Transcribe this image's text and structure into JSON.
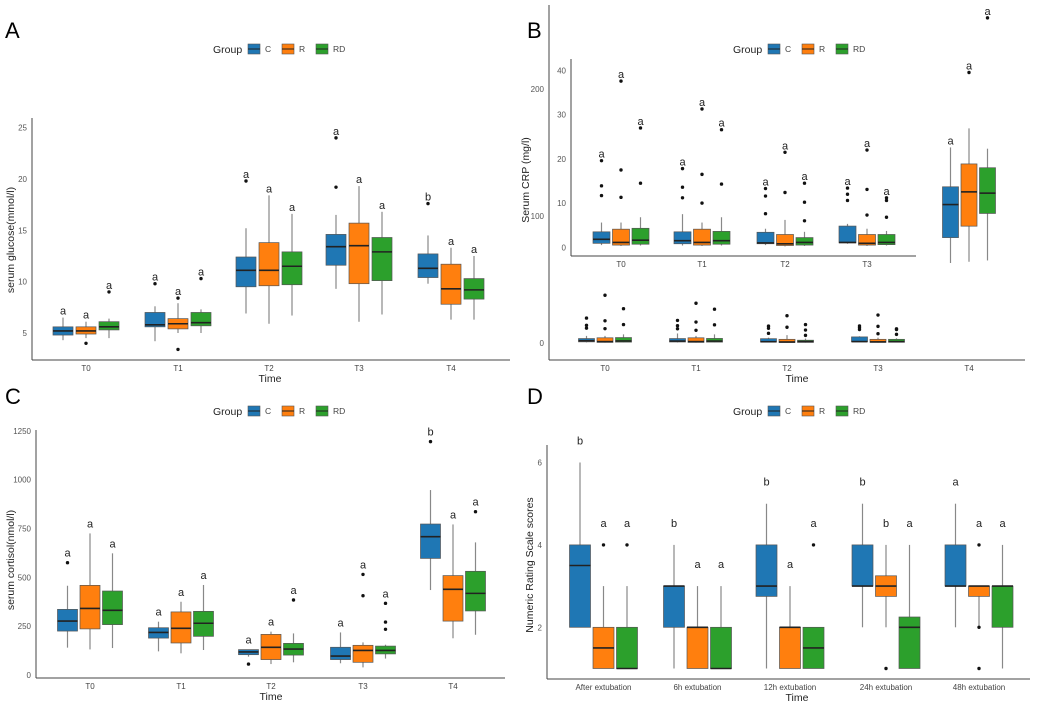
{
  "legend": {
    "title": "Group",
    "items": [
      {
        "label": "C",
        "color": "#1f77b4"
      },
      {
        "label": "R",
        "color": "#ff7f0e"
      },
      {
        "label": "RD",
        "color": "#2ca02c"
      }
    ]
  },
  "chart_data": [
    {
      "panel": "A",
      "type": "boxplot",
      "xlabel": "Time",
      "ylabel": "serum glucose(mmol/l)",
      "yticks": [
        5,
        10,
        15,
        20,
        25
      ],
      "categories": [
        "T0",
        "T1",
        "T2",
        "T3",
        "T4"
      ],
      "groups": [
        "C",
        "R",
        "RD"
      ],
      "boxes": [
        [
          {
            "s": [
              4.3,
              4.8,
              5.2,
              5.6,
              6.5
            ],
            "o": [],
            "l": "a"
          },
          {
            "s": [
              4.5,
              4.9,
              5.2,
              5.6,
              6.1
            ],
            "o": [
              4.0
            ],
            "l": "a"
          },
          {
            "s": [
              4.5,
              5.3,
              5.6,
              6.1,
              6.4
            ],
            "o": [
              9.0
            ],
            "l": "a"
          }
        ],
        [
          {
            "s": [
              4.2,
              5.6,
              5.8,
              7.0,
              7.6
            ],
            "o": [
              9.8
            ],
            "l": "a"
          },
          {
            "s": [
              5.0,
              5.4,
              5.9,
              6.4,
              7.9
            ],
            "o": [
              8.4,
              3.4
            ],
            "l": "a"
          },
          {
            "s": [
              5.0,
              5.7,
              6.0,
              7.0,
              7.3
            ],
            "o": [
              10.3
            ],
            "l": "a"
          }
        ],
        [
          {
            "s": [
              6.9,
              9.5,
              11.1,
              12.4,
              15.2
            ],
            "o": [
              19.8
            ],
            "l": "a"
          },
          {
            "s": [
              5.9,
              9.6,
              11.1,
              13.8,
              18.4
            ],
            "o": [],
            "l": "a"
          },
          {
            "s": [
              6.7,
              9.7,
              11.5,
              12.9,
              16.6
            ],
            "o": [],
            "l": "a"
          }
        ],
        [
          {
            "s": [
              9.3,
              11.6,
              13.4,
              14.6,
              16.5
            ],
            "o": [
              19.2,
              24.0
            ],
            "l": "a"
          },
          {
            "s": [
              6.1,
              9.8,
              13.5,
              15.7,
              19.3
            ],
            "o": [],
            "l": "a"
          },
          {
            "s": [
              6.8,
              10.1,
              12.9,
              14.3,
              16.8
            ],
            "o": [],
            "l": "a"
          }
        ],
        [
          {
            "s": [
              9.8,
              10.4,
              11.3,
              12.7,
              14.5
            ],
            "o": [
              17.6
            ],
            "l": "b"
          },
          {
            "s": [
              6.3,
              7.8,
              9.3,
              11.7,
              13.3
            ],
            "o": [],
            "l": "a"
          },
          {
            "s": [
              6.3,
              8.3,
              9.2,
              10.3,
              12.5
            ],
            "o": [],
            "l": "a"
          }
        ]
      ]
    },
    {
      "panel": "B",
      "type": "boxplot",
      "xlabel": "Time",
      "ylabel": "Serum CRP (mg/l)",
      "yticks": [
        0,
        100,
        200
      ],
      "categories": [
        "T0",
        "T1",
        "T2",
        "T3",
        "T4"
      ],
      "groups": [
        "C",
        "R",
        "RD"
      ],
      "inset": {
        "yticks": [
          0,
          10,
          20,
          30,
          40
        ],
        "categories": [
          "T0",
          "T1",
          "T2",
          "T3"
        ]
      },
      "boxes": [
        [
          {
            "s": [
              0.5,
              0.9,
              1.8,
              3.5,
              5.6
            ],
            "o": [
              11.7,
              13.9,
              19.6
            ],
            "l": "a"
          },
          {
            "s": [
              0.3,
              0.5,
              1.1,
              4.1,
              5.6
            ],
            "o": [
              11.3,
              17.5,
              37.6
            ],
            "l": "a"
          },
          {
            "s": [
              0.4,
              0.7,
              1.6,
              4.3,
              6.8
            ],
            "o": [
              14.5,
              27.0
            ],
            "l": "a"
          }
        ],
        [
          {
            "s": [
              0.4,
              0.8,
              1.5,
              3.5,
              7.5
            ],
            "o": [
              11.2,
              13.6,
              17.8
            ],
            "l": "a"
          },
          {
            "s": [
              0.3,
              0.5,
              1.1,
              4.1,
              5.6
            ],
            "o": [
              10.0,
              16.5,
              31.3
            ],
            "l": "a"
          },
          {
            "s": [
              0.4,
              0.7,
              1.5,
              3.6,
              6.8
            ],
            "o": [
              14.3,
              26.6
            ],
            "l": "a"
          }
        ],
        [
          {
            "s": [
              0.5,
              0.8,
              1.0,
              3.4,
              4.2
            ],
            "o": [
              7.6,
              11.6,
              13.3
            ],
            "l": "a"
          },
          {
            "s": [
              0.2,
              0.4,
              0.8,
              2.9,
              6.2
            ],
            "o": [
              12.4,
              21.5
            ],
            "l": "a"
          },
          {
            "s": [
              0.3,
              0.5,
              1.1,
              2.2,
              3.5
            ],
            "o": [
              6.0,
              10.2,
              14.5
            ],
            "l": "a"
          }
        ],
        [
          {
            "s": [
              0.8,
              1.0,
              1.1,
              4.8,
              5.3
            ],
            "o": [
              10.6,
              12.0,
              13.4
            ],
            "l": "a"
          },
          {
            "s": [
              0.3,
              0.5,
              0.9,
              2.9,
              4.2
            ],
            "o": [
              7.3,
              13.1,
              22.0
            ],
            "l": "a"
          },
          {
            "s": [
              0.4,
              0.6,
              1.1,
              2.9,
              3.7
            ],
            "o": [
              6.8,
              10.6,
              11.2
            ],
            "l": "a"
          }
        ],
        [
          {
            "s": [
              63,
              83,
              109,
              123,
              154
            ],
            "o": [],
            "l": "a"
          },
          {
            "s": [
              64,
              92,
              119,
              141,
              169
            ],
            "o": [
              213
            ],
            "l": "a"
          },
          {
            "s": [
              65,
              102,
              118,
              138,
              153
            ],
            "o": [
              256
            ],
            "l": "a"
          }
        ]
      ]
    },
    {
      "panel": "C",
      "type": "boxplot",
      "xlabel": "Time",
      "ylabel": "serum cortisol(nmol/l)",
      "yticks": [
        0,
        250,
        500,
        750,
        1000,
        1250
      ],
      "categories": [
        "T0",
        "T1",
        "T2",
        "T3",
        "T4"
      ],
      "groups": [
        "C",
        "R",
        "RD"
      ],
      "boxes": [
        [
          {
            "s": [
              140,
              225,
              276,
              336,
              457
            ],
            "o": [
              575
            ],
            "l": "a"
          },
          {
            "s": [
              131,
              236,
              341,
              459,
              725
            ],
            "o": [],
            "l": "a"
          },
          {
            "s": [
              138,
              258,
              331,
              430,
              623
            ],
            "o": [],
            "l": "a"
          }
        ],
        [
          {
            "s": [
              121,
              189,
              218,
              242,
              273
            ],
            "o": [],
            "l": "a"
          },
          {
            "s": [
              111,
              164,
              239,
              323,
              375
            ],
            "o": [],
            "l": "a"
          },
          {
            "s": [
              128,
              198,
              265,
              326,
              461
            ],
            "o": [],
            "l": "a"
          }
        ],
        [
          {
            "s": [
              94,
              104,
              118,
              130,
              130
            ],
            "o": [
              56
            ],
            "l": "a"
          },
          {
            "s": [
              56,
              79,
              142,
              208,
              222
            ],
            "o": [],
            "l": "a"
          },
          {
            "s": [
              65,
              102,
              133,
              162,
              213
            ],
            "o": [
              384
            ],
            "l": "a"
          }
        ],
        [
          {
            "s": [
              60,
              79,
              97,
              142,
              218
            ],
            "o": [],
            "l": "a"
          },
          {
            "s": [
              39,
              65,
              126,
              152,
              167
            ],
            "o": [
              406,
              515
            ],
            "l": "a"
          },
          {
            "s": [
              84,
              108,
              126,
              148,
              155
            ],
            "o": [
              234,
              271,
              367
            ],
            "l": "a"
          }
        ],
        [
          {
            "s": [
              435,
              597,
              708,
              773,
              947
            ],
            "o": [
              1195
            ],
            "l": "b"
          },
          {
            "s": [
              188,
              276,
              439,
              509,
              771
            ],
            "o": [],
            "l": "a"
          },
          {
            "s": [
              206,
              328,
              418,
              531,
              679
            ],
            "o": [
              836
            ],
            "l": "a"
          }
        ]
      ]
    },
    {
      "panel": "D",
      "type": "boxplot",
      "xlabel": "Time",
      "ylabel": "Numeric Rating Scale scores",
      "yticks": [
        2,
        4,
        6
      ],
      "categories": [
        "After extubation",
        "6h extubation",
        "12h extubation",
        "24h extubation",
        "48h extubation"
      ],
      "groups": [
        "C",
        "R",
        "RD"
      ],
      "boxes": [
        [
          {
            "s": [
              2,
              2,
              3.5,
              4,
              6
            ],
            "o": [],
            "l": "b"
          },
          {
            "s": [
              1,
              1,
              1.5,
              2,
              3
            ],
            "o": [
              4
            ],
            "l": "a"
          },
          {
            "s": [
              1,
              1,
              1,
              2,
              3
            ],
            "o": [
              4
            ],
            "l": "a"
          }
        ],
        [
          {
            "s": [
              1,
              2,
              3,
              3,
              4
            ],
            "o": [],
            "l": "b"
          },
          {
            "s": [
              1,
              1,
              2,
              2,
              3
            ],
            "o": [],
            "l": "a"
          },
          {
            "s": [
              1,
              1,
              1,
              2,
              3
            ],
            "o": [],
            "l": "a"
          }
        ],
        [
          {
            "s": [
              1,
              2.75,
              3,
              4,
              5
            ],
            "o": [],
            "l": "b"
          },
          {
            "s": [
              1,
              1,
              2,
              2,
              3
            ],
            "o": [],
            "l": "a"
          },
          {
            "s": [
              1,
              1,
              1.5,
              2,
              2
            ],
            "o": [
              4
            ],
            "l": "a"
          }
        ],
        [
          {
            "s": [
              2,
              3,
              3,
              4,
              5
            ],
            "o": [],
            "l": "b"
          },
          {
            "s": [
              2,
              2.75,
              3,
              3.25,
              4
            ],
            "o": [
              1
            ],
            "l": "b"
          },
          {
            "s": [
              1,
              1,
              2,
              2.25,
              4
            ],
            "o": [],
            "l": "a"
          }
        ],
        [
          {
            "s": [
              2,
              3,
              3,
              4,
              5
            ],
            "o": [],
            "l": "a"
          },
          {
            "s": [
              2,
              2.75,
              3,
              3,
              3
            ],
            "o": [
              4,
              2,
              1
            ],
            "l": "a"
          },
          {
            "s": [
              1,
              2,
              3,
              3,
              4
            ],
            "o": [],
            "l": "a"
          }
        ]
      ]
    }
  ]
}
